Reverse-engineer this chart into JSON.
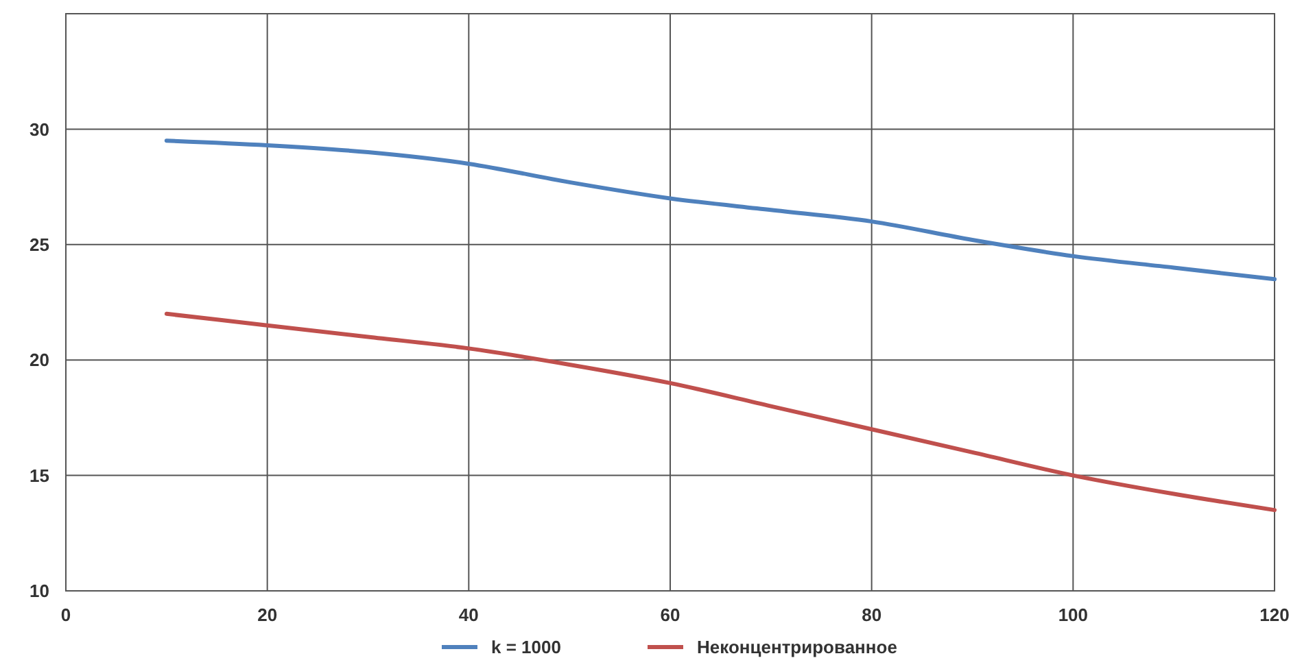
{
  "chart_data": {
    "type": "line",
    "x": [
      10,
      20,
      30,
      40,
      50,
      60,
      70,
      80,
      90,
      100,
      110,
      120
    ],
    "series": [
      {
        "name": "k = 1000",
        "color": "#4f81bd",
        "values": [
          29.5,
          29.3,
          29.0,
          28.5,
          27.7,
          27.0,
          26.5,
          26.0,
          25.2,
          24.5,
          24.0,
          23.5
        ]
      },
      {
        "name": "Неконцентрированное",
        "color": "#c0504d",
        "values": [
          22.0,
          21.5,
          21.0,
          20.5,
          19.8,
          19.0,
          18.0,
          17.0,
          16.0,
          15.0,
          14.2,
          13.5
        ]
      }
    ],
    "xlim": [
      0,
      120
    ],
    "xticks": [
      0,
      20,
      40,
      60,
      80,
      100,
      120
    ],
    "ylim": [
      10,
      35
    ],
    "yticks": [
      10,
      15,
      20,
      25,
      30,
      {
        "value": 35,
        "label": null
      }
    ],
    "grid": true,
    "legend": "bottom",
    "marker": "none",
    "line_style": "solid"
  }
}
